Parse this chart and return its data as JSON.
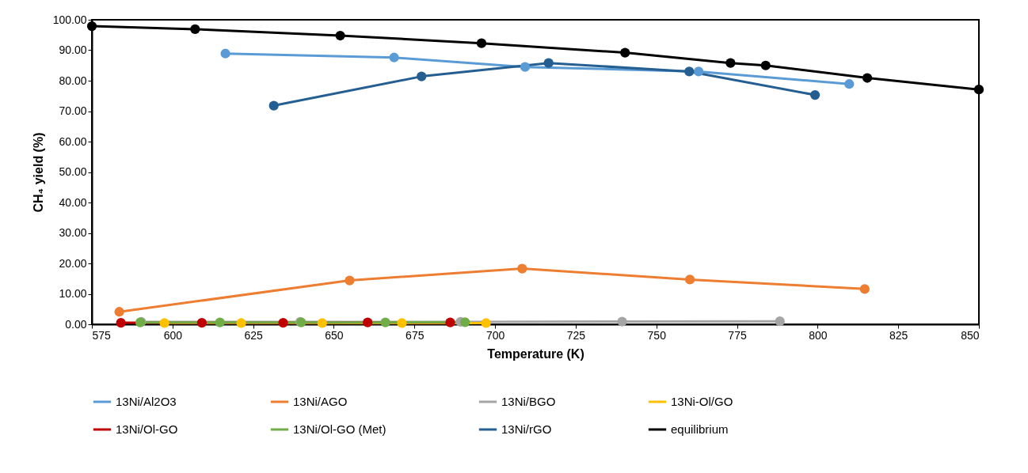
{
  "chart_data": {
    "type": "line",
    "xlabel": "Temperature (K)",
    "ylabel": "CH₄ yield (%)",
    "xlim": [
      575,
      850
    ],
    "xticks": [
      575,
      600,
      625,
      650,
      675,
      700,
      725,
      750,
      775,
      800,
      825,
      850
    ],
    "ylim": [
      0,
      100
    ],
    "yticks": [
      {
        "value": 0,
        "label": "0.00"
      },
      {
        "value": 10,
        "label": "10.00"
      },
      {
        "value": 20,
        "label": "20.00"
      },
      {
        "value": 30,
        "label": "30.00"
      },
      {
        "value": 40,
        "label": "40.00"
      },
      {
        "value": 50,
        "label": "50.00"
      },
      {
        "value": 60,
        "label": "60.00"
      },
      {
        "value": 70,
        "label": "70.00"
      },
      {
        "value": 80,
        "label": "80.00"
      },
      {
        "value": 90,
        "label": "90.00"
      },
      {
        "value": 100,
        "label": "100.00"
      }
    ],
    "grid": false,
    "legend": "bottom",
    "marker": "circle",
    "line_style": "solid",
    "series": [
      {
        "name": "13Ni/Al2O3",
        "color": "#5b9bd5",
        "x": [
          616.4,
          668.7,
          709.3,
          763.1,
          809.8
        ],
        "values": [
          88.9,
          87.6,
          84.5,
          83.0,
          78.9
        ]
      },
      {
        "name": "13Ni/AGO",
        "color": "#ed7d31",
        "x": [
          583.5,
          654.9,
          708.4,
          760.4,
          814.6
        ],
        "values": [
          4.1,
          14.4,
          18.3,
          14.7,
          11.6
        ]
      },
      {
        "name": "13Ni/BGO",
        "color": "#a5a5a5",
        "x": [
          590.3,
          639.6,
          689.3,
          739.4,
          788.3
        ],
        "values": [
          0.8,
          0.8,
          0.8,
          0.9,
          1.0
        ]
      },
      {
        "name": "13Ni-Ol/GO",
        "color": "#ffc000",
        "x": [
          597.5,
          621.3,
          646.4,
          671.1,
          697.2
        ],
        "values": [
          0.4,
          0.4,
          0.4,
          0.4,
          0.4
        ]
      },
      {
        "name": "13Ni/Ol-GO",
        "color": "#c00000",
        "x": [
          584.0,
          609.1,
          634.3,
          660.5,
          686.1
        ],
        "values": [
          0.5,
          0.5,
          0.5,
          0.6,
          0.6
        ]
      },
      {
        "name": "13Ni/Ol-GO (Met)",
        "color": "#70ad47",
        "x": [
          590.0,
          614.7,
          639.9,
          666.0,
          690.7
        ],
        "values": [
          0.6,
          0.6,
          0.6,
          0.6,
          0.7
        ]
      },
      {
        "name": "13Ni/rGO",
        "color": "#255e91",
        "x": [
          631.4,
          677.2,
          716.6,
          760.2,
          799.2
        ],
        "values": [
          71.8,
          81.4,
          85.8,
          83.0,
          75.3
        ]
      },
      {
        "name": "equilibrium",
        "color": "#000000",
        "x": [
          575,
          607.0,
          652.0,
          695.8,
          740.3,
          773.0,
          783.9,
          815.4,
          850
        ],
        "values": [
          97.9,
          96.9,
          94.8,
          92.3,
          89.2,
          85.8,
          85.0,
          80.9,
          77.1
        ]
      }
    ]
  }
}
